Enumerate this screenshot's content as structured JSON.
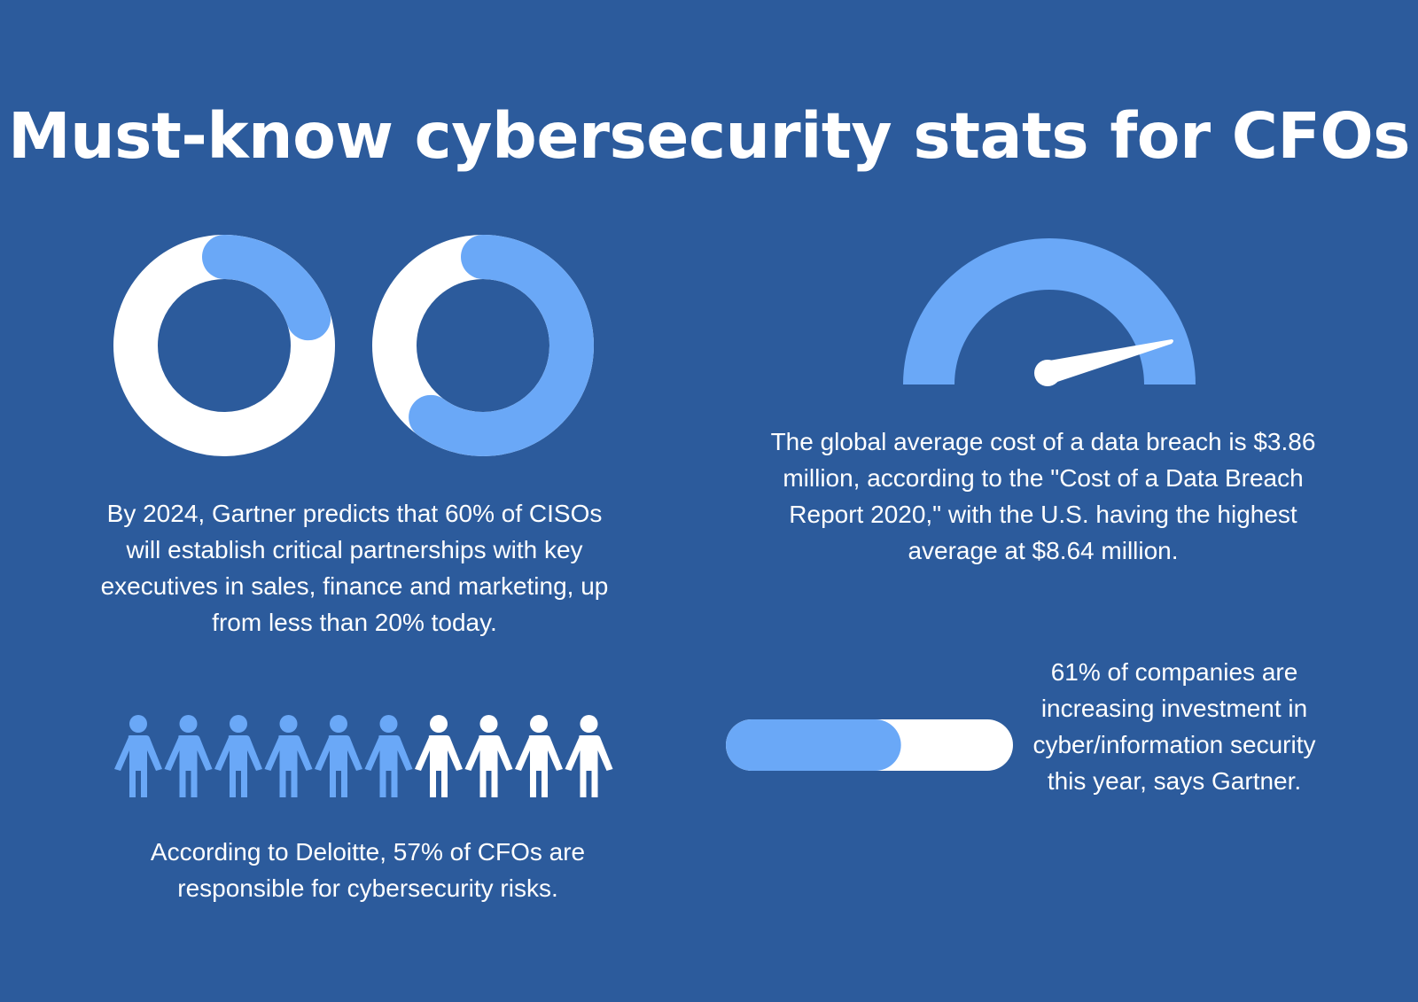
{
  "title": "Must-know cybersecurity stats for CFOs",
  "colors": {
    "background": "#2c5b9c",
    "accent": "#6aa8f7",
    "light": "#ffffff"
  },
  "donuts": [
    {
      "name": "less than 20% today",
      "percent": 20
    },
    {
      "name": "60% by 2024",
      "percent": 60
    }
  ],
  "gauge": {
    "level": 0.9
  },
  "progress_bar": {
    "percent": 61
  },
  "people": {
    "total": 10,
    "highlighted": 6,
    "icon": "person-icon"
  },
  "stats": {
    "ciso": "By 2024, Gartner predicts that 60% of CISOs will establish critical partnerships with key executives in sales, finance and marketing, up from less than 20% today.",
    "breach": "The global average cost of a data breach is $3.86 million, according to the \"Cost of a Data Breach Report 2020,\" with the U.S. having the highest average at $8.64 million.",
    "investment": "61% of companies are increasing investment in cyber/information security this year, says Gartner.",
    "cfo": "According to Deloitte, 57% of CFOs are responsible for cybersecurity risks."
  }
}
